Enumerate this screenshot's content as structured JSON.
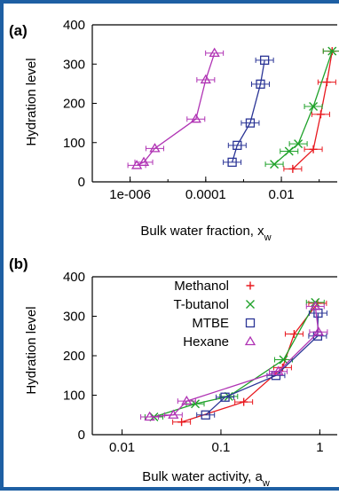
{
  "panels": [
    {
      "panel_label": "(a)",
      "ylabel": "Hydration level",
      "xlabel_main": "Bulk water fraction, x",
      "xlabel_sub": "w"
    },
    {
      "panel_label": "(b)",
      "ylabel": "Hydration level",
      "xlabel_main": "Bulk water activity, a",
      "xlabel_sub": "w"
    }
  ],
  "chart_data": [
    {
      "type": "line",
      "panel": "(a)",
      "xscale": "log",
      "xlim": [
        1e-07,
        0.3
      ],
      "ylim": [
        0,
        400
      ],
      "xticks": [
        1e-06,
        0.0001,
        0.01
      ],
      "xtick_labels": [
        "1e-006",
        "0.0001",
        "0.01"
      ],
      "yticks": [
        0,
        100,
        200,
        300,
        400
      ],
      "ytick_labels": [
        "0",
        "100",
        "200",
        "300",
        "400"
      ],
      "series": [
        {
          "name": "Methanol",
          "color": "#e8191f",
          "marker": "plus",
          "x": [
            0.02,
            0.07,
            0.11,
            0.16,
            0.22
          ],
          "y": [
            33,
            83,
            172,
            254,
            333
          ]
        },
        {
          "name": "T-butanol",
          "color": "#1fa22a",
          "marker": "cross",
          "x": [
            0.0065,
            0.016,
            0.028,
            0.07,
            0.22
          ],
          "y": [
            45,
            78,
            97,
            192,
            333
          ]
        },
        {
          "name": "MTBE",
          "color": "#2b3596",
          "marker": "square",
          "x": [
            0.0005,
            0.00068,
            0.0015,
            0.0028,
            0.0036
          ],
          "y": [
            50,
            93,
            150,
            249,
            310
          ]
        },
        {
          "name": "Hexane",
          "color": "#b033b4",
          "marker": "triangle",
          "x": [
            1.5e-06,
            2.3e-06,
            4.5e-06,
            5.5e-05,
            0.0001,
            0.00017
          ],
          "y": [
            42,
            50,
            85,
            160,
            260,
            328
          ]
        }
      ]
    },
    {
      "type": "line",
      "panel": "(b)",
      "xscale": "log",
      "xlim": [
        0.005,
        1.5
      ],
      "ylim": [
        0,
        400
      ],
      "xticks": [
        0.01,
        0.1,
        1
      ],
      "xtick_labels": [
        "0.01",
        "0.1",
        "1"
      ],
      "yticks": [
        0,
        100,
        200,
        300,
        400
      ],
      "ytick_labels": [
        "0",
        "100",
        "200",
        "300",
        "400"
      ],
      "legend": "top-right",
      "series": [
        {
          "name": "Methanol",
          "color": "#e8191f",
          "marker": "plus",
          "x": [
            0.04,
            0.17,
            0.42,
            0.55,
            0.95
          ],
          "y": [
            32,
            83,
            170,
            255,
            333
          ]
        },
        {
          "name": "T-butanol",
          "color": "#1fa22a",
          "marker": "cross",
          "x": [
            0.021,
            0.055,
            0.12,
            0.43,
            0.9
          ],
          "y": [
            45,
            78,
            97,
            190,
            335
          ]
        },
        {
          "name": "MTBE",
          "color": "#2b3596",
          "marker": "square",
          "x": [
            0.07,
            0.11,
            0.36,
            0.95,
            0.96
          ],
          "y": [
            50,
            95,
            150,
            250,
            308
          ]
        },
        {
          "name": "Hexane",
          "color": "#b033b4",
          "marker": "triangle",
          "x": [
            0.019,
            0.033,
            0.045,
            0.38,
            0.97,
            0.9
          ],
          "y": [
            45,
            50,
            85,
            160,
            260,
            325
          ]
        }
      ]
    }
  ]
}
